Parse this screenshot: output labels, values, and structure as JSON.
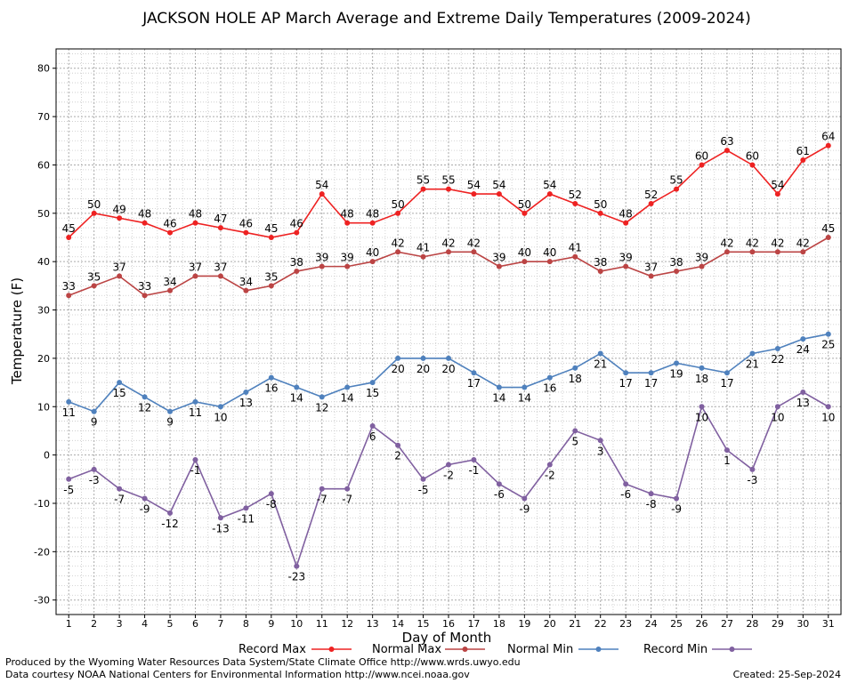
{
  "chart_data": {
    "type": "line",
    "title": "JACKSON HOLE AP March Average and Extreme Daily Temperatures (2009-2024)",
    "xlabel": "Day of Month",
    "ylabel": "Temperature (F)",
    "ylim": [
      -33,
      84
    ],
    "yticks": [
      -30,
      -20,
      -10,
      0,
      10,
      20,
      30,
      40,
      50,
      60,
      70,
      80
    ],
    "x": [
      1,
      2,
      3,
      4,
      5,
      6,
      7,
      8,
      9,
      10,
      11,
      12,
      13,
      14,
      15,
      16,
      17,
      18,
      19,
      20,
      21,
      22,
      23,
      24,
      25,
      26,
      27,
      28,
      29,
      30,
      31
    ],
    "grid": true,
    "legend_position": "bottom",
    "series": [
      {
        "name": "Record Max",
        "color": "#ee2222",
        "label_pos": "above",
        "values": [
          45,
          50,
          49,
          48,
          46,
          48,
          47,
          46,
          45,
          46,
          54,
          48,
          48,
          50,
          55,
          55,
          54,
          54,
          50,
          54,
          52,
          50,
          48,
          52,
          55,
          60,
          63,
          60,
          54,
          61,
          64
        ]
      },
      {
        "name": "Normal Max",
        "color": "#bb4444",
        "label_pos": "above",
        "values": [
          33,
          35,
          37,
          33,
          34,
          37,
          37,
          34,
          35,
          38,
          39,
          39,
          40,
          42,
          41,
          42,
          42,
          39,
          40,
          40,
          41,
          38,
          39,
          37,
          38,
          39,
          42,
          42,
          42,
          42,
          45
        ]
      },
      {
        "name": "Normal Min",
        "color": "#4f81bd",
        "label_pos": "below",
        "values": [
          11,
          9,
          15,
          12,
          9,
          11,
          10,
          13,
          16,
          14,
          12,
          14,
          15,
          20,
          20,
          20,
          17,
          14,
          14,
          16,
          18,
          21,
          17,
          17,
          19,
          18,
          17,
          21,
          22,
          24,
          25
        ]
      },
      {
        "name": "Record Min",
        "color": "#8060a0",
        "label_pos": "below",
        "values": [
          -5,
          -3,
          -7,
          -9,
          -12,
          -1,
          -13,
          -11,
          -8,
          -23,
          -7,
          -7,
          6,
          2,
          -5,
          -2,
          -1,
          -6,
          -9,
          -2,
          5,
          3,
          -6,
          -8,
          -9,
          10,
          1,
          -3,
          10,
          13,
          10
        ]
      }
    ]
  },
  "footer": {
    "produced_by": "Produced by the Wyoming Water Resources Data System/State Climate Office http://www.wrds.uwyo.edu",
    "courtesy": "Data courtesy NOAA National Centers for Environmental Information http://www.ncei.noaa.gov",
    "created": "Created:  25-Sep-2024"
  }
}
